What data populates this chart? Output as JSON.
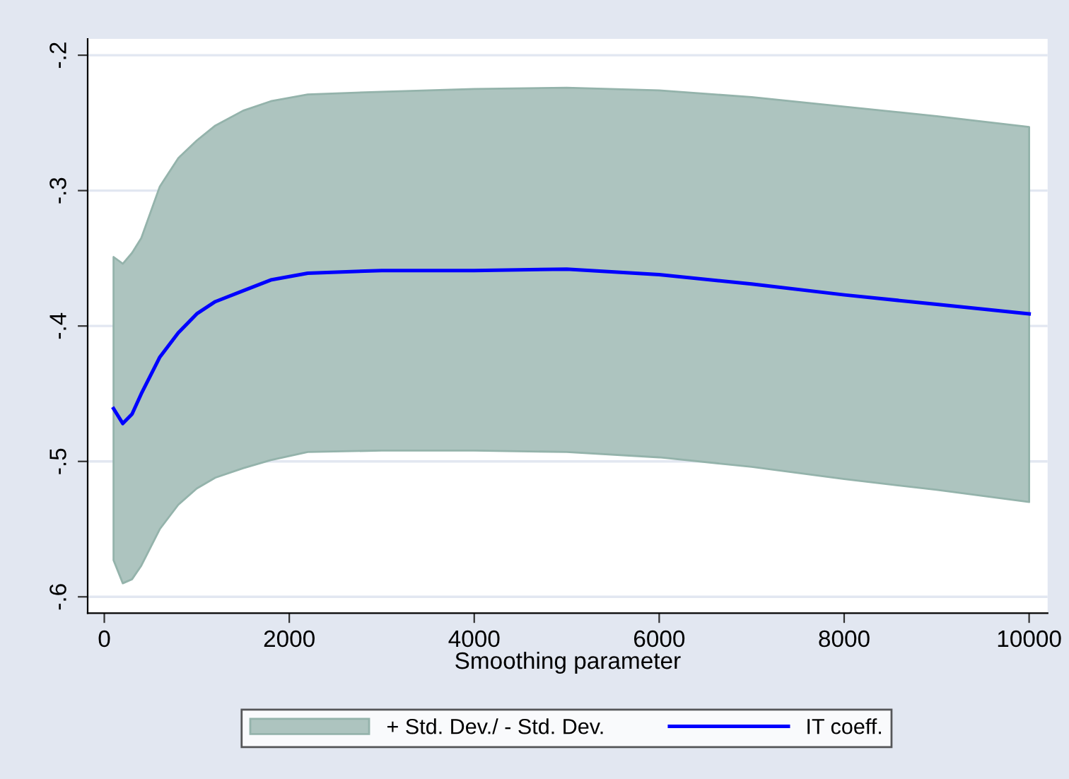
{
  "chart_data": {
    "type": "line",
    "xlabel": "Smoothing parameter",
    "annotations": [
      "+ Std. Dev./ - Std. Dev."
    ],
    "x": [
      100,
      200,
      300,
      400,
      600,
      800,
      1000,
      1200,
      1500,
      1800,
      2200,
      3000,
      4000,
      5000,
      6000,
      7000,
      8000,
      9000,
      10000
    ],
    "series": [
      {
        "name": "IT coeff.",
        "type": "line",
        "color": "#0000ff",
        "values": [
          -0.461,
          -0.472,
          -0.465,
          -0.45,
          -0.423,
          -0.405,
          -0.391,
          -0.382,
          -0.374,
          -0.366,
          -0.361,
          -0.359,
          -0.359,
          -0.358,
          -0.362,
          -0.369,
          -0.377,
          -0.384,
          -0.391
        ],
        "upper": [
          -0.349,
          -0.354,
          -0.346,
          -0.335,
          -0.297,
          -0.276,
          -0.263,
          -0.252,
          -0.241,
          -0.234,
          -0.229,
          -0.227,
          -0.225,
          -0.224,
          -0.226,
          -0.231,
          -0.238,
          -0.245,
          -0.253
        ],
        "lower": [
          -0.573,
          -0.59,
          -0.587,
          -0.577,
          -0.55,
          -0.532,
          -0.52,
          -0.512,
          -0.505,
          -0.499,
          -0.493,
          -0.492,
          -0.492,
          -0.493,
          -0.497,
          -0.504,
          -0.513,
          -0.521,
          -0.53
        ]
      }
    ],
    "xlim": [
      -180,
      10200
    ],
    "xticks": [
      0,
      2000,
      4000,
      6000,
      8000,
      10000
    ],
    "ylim": [
      -0.612,
      -0.188
    ],
    "yticks": [
      {
        "value": -0.6,
        "label": "-.6"
      },
      {
        "value": -0.5,
        "label": "-.5"
      },
      {
        "value": -0.4,
        "label": "-.4"
      },
      {
        "value": -0.3,
        "label": "-.3"
      },
      {
        "value": -0.2,
        "label": "-.2"
      }
    ],
    "grid": "y",
    "legend": "bottom",
    "marker": "none",
    "line_style": "solid"
  }
}
